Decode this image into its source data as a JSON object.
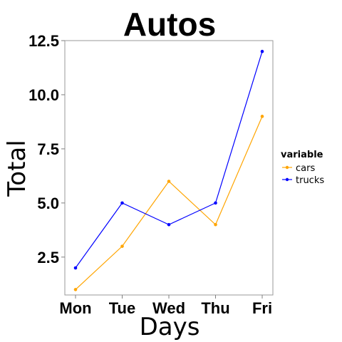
{
  "chart_data": {
    "type": "line",
    "title": "Autos",
    "xlabel": "Days",
    "ylabel": "Total",
    "categories": [
      "Mon",
      "Tue",
      "Wed",
      "Thu",
      "Fri"
    ],
    "ylim": [
      0.75,
      12.5
    ],
    "yticks": [
      2.5,
      5.0,
      7.5,
      10.0,
      12.5
    ],
    "ytick_labels": [
      "2.5",
      "5.0",
      "7.5",
      "10.0",
      "12.5"
    ],
    "grid": false,
    "legend": {
      "title": "variable",
      "placement": "right"
    },
    "series": [
      {
        "name": "cars",
        "color": "#FFA500",
        "values": [
          1,
          3,
          6,
          4,
          9
        ]
      },
      {
        "name": "trucks",
        "color": "#0000FF",
        "values": [
          2,
          5,
          4,
          5,
          12
        ]
      }
    ]
  }
}
